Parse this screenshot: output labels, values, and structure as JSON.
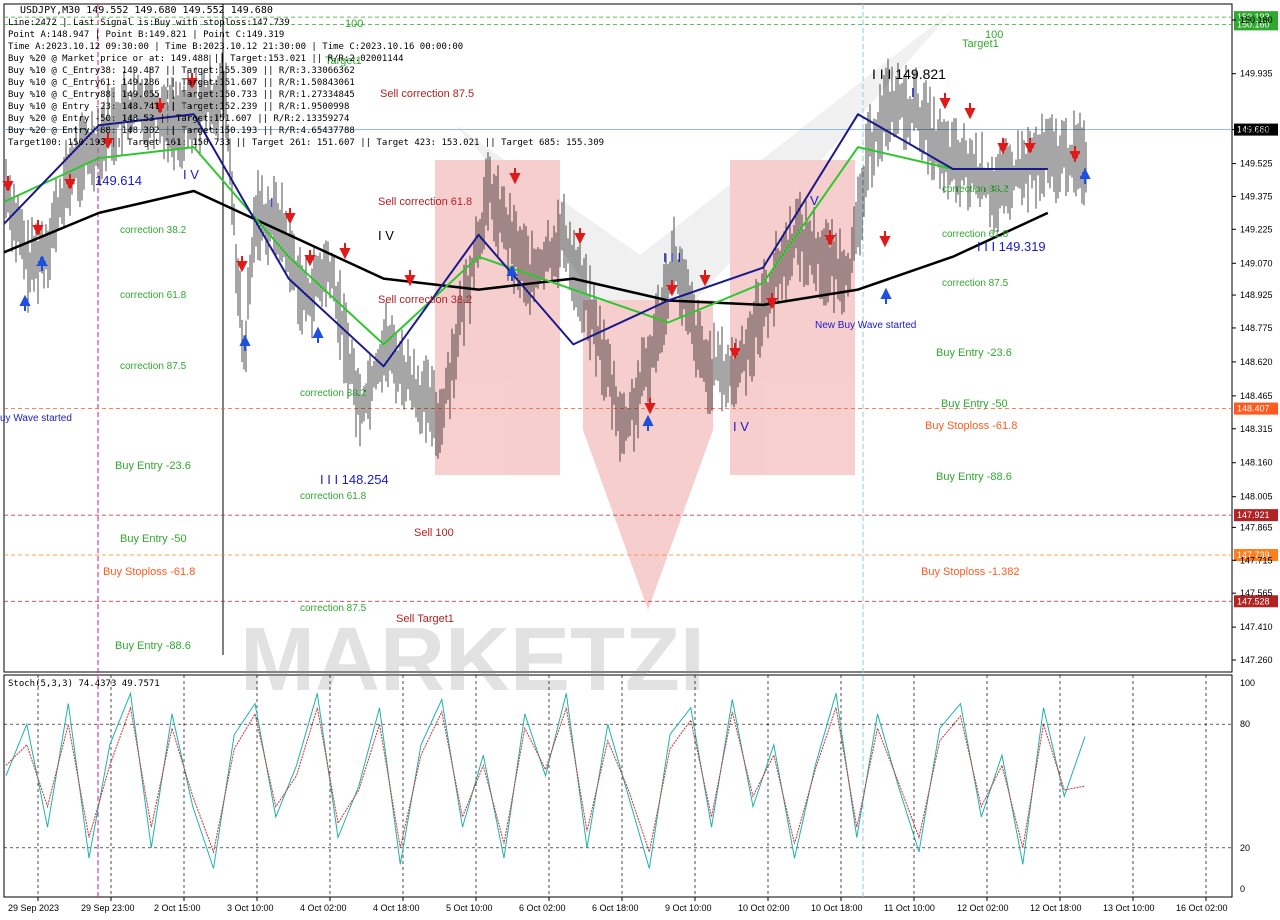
{
  "header": {
    "symbol_line": "USDJPY,M30  149.552 149.680 149.552 149.680",
    "info_lines": [
      "Line:2472 | Last Signal is:Buy with stoploss:147.739",
      "Point A:148.947 | Point B:149.821 | Point C:149.319",
      "Time A:2023.10.12 09:30:00 | Time B:2023.10.12 21:30:00 | Time C:2023.10.16 00:00:00",
      "Buy %20 @ Market price or at: 149.488 || Target:153.021 || R/R:2.02001144",
      "Buy %10 @ C_Entry38: 149.487 || Target:155.309 || R/R:3.33066362",
      "Buy %10 @ C_Entry61: 149.286 || Target:151.607 || R/R:1.50843061",
      "Buy %10 @ C_Entry88: 149.055 || Target:150.733 || R/R:1.27334845",
      "Buy %10 @ Entry -23: 148.741 || Target:152.239 || R/R:1.9500998",
      "Buy %20 @ Entry -50: 148.53 || Target:151.607 || R/R:2.13359274",
      "Buy %20 @ Entry -88: 148.302 || Target:150.193 || R/R:4.65437788",
      "Target100: 150.193 || Target 161: 150.733 || Target 261: 151.607 || Target 423: 153.021 || Target 685: 155.309"
    ]
  },
  "chart_data": [
    {
      "type": "candlestick",
      "symbol": "USDJPY",
      "timeframe": "M30",
      "ylim": [
        147.26,
        150.18
      ],
      "y_ticks": [
        "150.180",
        "149.935",
        "149.680",
        "149.525",
        "149.375",
        "149.225",
        "149.070",
        "148.925",
        "148.775",
        "148.620",
        "148.465",
        "148.315",
        "148.160",
        "148.005",
        "147.865",
        "147.715",
        "147.565",
        "147.410",
        "147.260"
      ],
      "x_ticks": [
        "29 Sep 2023",
        "29 Sep 23:00",
        "2 Oct 15:00",
        "3 Oct 10:00",
        "4 Oct 02:00",
        "4 Oct 18:00",
        "5 Oct 10:00",
        "6 Oct 02:00",
        "6 Oct 18:00",
        "9 Oct 10:00",
        "10 Oct 02:00",
        "10 Oct 18:00",
        "11 Oct 10:00",
        "12 Oct 02:00",
        "12 Oct 18:00",
        "13 Oct 10:00",
        "16 Oct 02:00"
      ],
      "price_tags": [
        {
          "label": "150.193",
          "value": 150.193,
          "color": "#2fa82f"
        },
        {
          "label": "150.160",
          "value": 150.16,
          "color": "#2fa82f"
        },
        {
          "label": "149.680",
          "value": 149.68,
          "color": "#000000"
        },
        {
          "label": "148.407",
          "value": 148.407,
          "color": "#ff5a1e"
        },
        {
          "label": "147.921",
          "value": 147.921,
          "color": "#b22222"
        },
        {
          "label": "147.739",
          "value": 147.739,
          "color": "#ff7f1e"
        },
        {
          "label": "147.528",
          "value": 147.528,
          "color": "#b22222"
        }
      ],
      "price_path": [
        {
          "t": 0,
          "v": 149.45
        },
        {
          "t": 0.02,
          "v": 149.05
        },
        {
          "t": 0.035,
          "v": 149.15
        },
        {
          "t": 0.055,
          "v": 149.5
        },
        {
          "t": 0.075,
          "v": 149.62
        },
        {
          "t": 0.095,
          "v": 149.75
        },
        {
          "t": 0.12,
          "v": 149.8
        },
        {
          "t": 0.14,
          "v": 149.7
        },
        {
          "t": 0.165,
          "v": 149.8
        },
        {
          "t": 0.18,
          "v": 149.85
        },
        {
          "t": 0.195,
          "v": 148.6
        },
        {
          "t": 0.205,
          "v": 149.3
        },
        {
          "t": 0.225,
          "v": 149.25
        },
        {
          "t": 0.245,
          "v": 148.9
        },
        {
          "t": 0.265,
          "v": 149.05
        },
        {
          "t": 0.29,
          "v": 148.4
        },
        {
          "t": 0.31,
          "v": 148.7
        },
        {
          "t": 0.335,
          "v": 148.5
        },
        {
          "t": 0.355,
          "v": 148.35
        },
        {
          "t": 0.375,
          "v": 148.9
        },
        {
          "t": 0.395,
          "v": 149.4
        },
        {
          "t": 0.41,
          "v": 149.2
        },
        {
          "t": 0.43,
          "v": 149.0
        },
        {
          "t": 0.455,
          "v": 149.2
        },
        {
          "t": 0.48,
          "v": 148.8
        },
        {
          "t": 0.505,
          "v": 148.3
        },
        {
          "t": 0.525,
          "v": 148.6
        },
        {
          "t": 0.545,
          "v": 149.1
        },
        {
          "t": 0.57,
          "v": 148.6
        },
        {
          "t": 0.595,
          "v": 148.55
        },
        {
          "t": 0.62,
          "v": 148.9
        },
        {
          "t": 0.645,
          "v": 149.2
        },
        {
          "t": 0.675,
          "v": 149.05
        },
        {
          "t": 0.69,
          "v": 149.05
        },
        {
          "t": 0.705,
          "v": 149.6
        },
        {
          "t": 0.72,
          "v": 149.8
        },
        {
          "t": 0.745,
          "v": 149.75
        },
        {
          "t": 0.765,
          "v": 149.55
        },
        {
          "t": 0.785,
          "v": 149.5
        },
        {
          "t": 0.81,
          "v": 149.4
        },
        {
          "t": 0.83,
          "v": 149.5
        },
        {
          "t": 0.85,
          "v": 149.55
        }
      ],
      "moving_averages": [
        {
          "color": "#000000",
          "points": [
            149.12,
            149.3,
            149.4,
            149.2,
            149.0,
            148.95,
            149.0,
            148.9,
            148.88,
            148.95,
            149.1,
            149.3
          ]
        },
        {
          "color": "#2ec72e",
          "points": [
            149.35,
            149.55,
            149.6,
            149.1,
            148.7,
            149.1,
            148.95,
            148.8,
            148.98,
            149.6,
            149.5,
            149.5
          ]
        },
        {
          "color": "#1a1a8c",
          "points": [
            149.25,
            149.7,
            149.75,
            149.0,
            148.6,
            149.2,
            148.7,
            148.9,
            149.05,
            149.75,
            149.5,
            149.5
          ]
        }
      ],
      "annotations": [
        {
          "text": "100",
          "color": "#2fa82f"
        },
        {
          "text": "Target1",
          "color": "#2fa82f"
        },
        {
          "text": "100",
          "color": "#2fa82f"
        },
        {
          "text": "Target1",
          "color": "#2fa82f"
        },
        {
          "text": "Sell correction 87.5",
          "color": "#b22222"
        },
        {
          "text": "Sell correction 61.8",
          "color": "#b22222"
        },
        {
          "text": "Sell correction 38.2",
          "color": "#b22222"
        },
        {
          "text": "Sell 100",
          "color": "#b22222"
        },
        {
          "text": "Sell Target1",
          "color": "#b22222"
        },
        {
          "text": "149.614",
          "color": "#1a1acd"
        },
        {
          "text": "I V",
          "color": "#1a1acd"
        },
        {
          "text": "I V",
          "color": "#000000"
        },
        {
          "text": "I",
          "color": "#1a1acd"
        },
        {
          "text": "I I I",
          "color": "#1a1acd"
        },
        {
          "text": "I I I 148.254",
          "color": "#1a1acd"
        },
        {
          "text": "I V",
          "color": "#1a1acd"
        },
        {
          "text": "V",
          "color": "#1a1acd"
        },
        {
          "text": "I",
          "color": "#1a1acd"
        },
        {
          "text": "I I I 149.821",
          "color": "#000000"
        },
        {
          "text": "I I I 149.319",
          "color": "#1a1acd"
        },
        {
          "text": "New Buy Wave started",
          "color": "#1a1acd"
        },
        {
          "text": "uy Wave started",
          "color": "#1a1acd"
        },
        {
          "text": "correction 38.2",
          "color": "#2fa82f"
        },
        {
          "text": "correction 61.8",
          "color": "#2fa82f"
        },
        {
          "text": "correction 87.5",
          "color": "#2fa82f"
        },
        {
          "text": "correction 38.2",
          "color": "#2fa82f"
        },
        {
          "text": "correction 61.8",
          "color": "#2fa82f"
        },
        {
          "text": "correction 87.5",
          "color": "#2fa82f"
        },
        {
          "text": "correction 38.2",
          "color": "#2fa82f"
        },
        {
          "text": "correction 61.8",
          "color": "#2fa82f"
        },
        {
          "text": "correction 87.5",
          "color": "#2fa82f"
        },
        {
          "text": "Buy Entry -23.6",
          "color": "#2fa82f"
        },
        {
          "text": "Buy Entry -50",
          "color": "#2fa82f"
        },
        {
          "text": "Buy Stoploss -61.8",
          "color": "#ff5a1e"
        },
        {
          "text": "Buy Entry -88.6",
          "color": "#2fa82f"
        },
        {
          "text": "Buy Entry -23.6",
          "color": "#2fa82f"
        },
        {
          "text": "Buy Entry -50",
          "color": "#2fa82f"
        },
        {
          "text": "Buy Stoploss -61.8",
          "color": "#ff5a1e"
        },
        {
          "text": "Buy Entry -88.6",
          "color": "#2fa82f"
        },
        {
          "text": "Buy Stoploss -1.382",
          "color": "#ff5a1e"
        }
      ]
    },
    {
      "type": "line",
      "title": "Stoch(5,3,3) 74.4373 49.7571",
      "ylim": [
        0,
        100
      ],
      "y_ticks": [
        "100",
        "80",
        "20",
        "0"
      ],
      "levels": [
        80,
        20
      ],
      "series": [
        {
          "color": "#20b2aa",
          "values": [
            55,
            80,
            30,
            90,
            15,
            70,
            95,
            20,
            85,
            40,
            10,
            75,
            90,
            35,
            60,
            95,
            25,
            50,
            88,
            12,
            70,
            92,
            30,
            65,
            15,
            85,
            55,
            95,
            20,
            80,
            45,
            10,
            75,
            88,
            30,
            92,
            40,
            70,
            15,
            60,
            95,
            25,
            85,
            50,
            18,
            78,
            90,
            35,
            65,
            12,
            88,
            45,
            74
          ]
        },
        {
          "color": "#cc3333",
          "values": [
            60,
            70,
            40,
            80,
            25,
            60,
            88,
            30,
            78,
            45,
            18,
            68,
            85,
            40,
            55,
            88,
            32,
            48,
            80,
            20,
            65,
            86,
            35,
            60,
            22,
            78,
            58,
            88,
            28,
            72,
            48,
            18,
            68,
            82,
            35,
            86,
            45,
            65,
            22,
            58,
            88,
            30,
            78,
            52,
            25,
            72,
            84,
            40,
            60,
            20,
            80,
            48,
            50
          ]
        }
      ]
    }
  ]
}
